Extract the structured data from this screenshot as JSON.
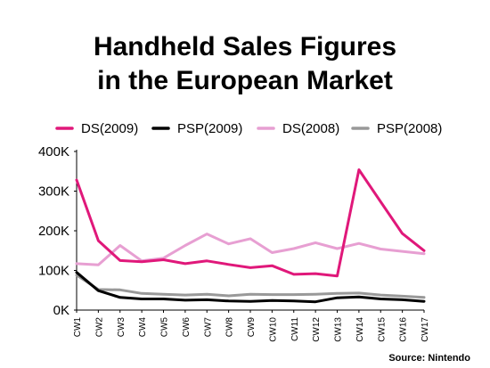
{
  "chart_data": {
    "type": "line",
    "title": [
      "Handheld Sales Figures",
      "in the European Market"
    ],
    "xlabel": "",
    "ylabel": "",
    "categories": [
      "CW1",
      "CW2",
      "CW3",
      "CW4",
      "CW5",
      "CW6",
      "CW7",
      "CW8",
      "CW9",
      "CW10",
      "CW11",
      "CW12",
      "CW13",
      "CW14",
      "CW15",
      "CW16",
      "CW17"
    ],
    "ylim": [
      0,
      400000
    ],
    "ytick_values": [
      0,
      100000,
      200000,
      300000,
      400000
    ],
    "ytick_labels": [
      "0K",
      "100K",
      "200K",
      "300K",
      "400K"
    ],
    "grid": false,
    "legend_position": "top",
    "source": "Source: Nintendo",
    "series": [
      {
        "name": "DS(2009)",
        "color": "#e0187a",
        "values": [
          328000,
          175000,
          125000,
          122000,
          127000,
          117000,
          124000,
          115000,
          107000,
          112000,
          90000,
          92000,
          86000,
          354000,
          273000,
          193000,
          150000
        ]
      },
      {
        "name": "PSP(2009)",
        "color": "#000000",
        "values": [
          95000,
          49000,
          32000,
          28000,
          28000,
          25000,
          26000,
          23000,
          22000,
          24000,
          23000,
          21000,
          31000,
          33000,
          28000,
          26000,
          22000
        ]
      },
      {
        "name": "DS(2008)",
        "color": "#e79fd2",
        "values": [
          117000,
          114000,
          163000,
          124000,
          131000,
          163000,
          192000,
          167000,
          180000,
          145000,
          155000,
          170000,
          155000,
          168000,
          154000,
          148000,
          142000
        ]
      },
      {
        "name": "PSP(2008)",
        "color": "#999999",
        "values": [
          88000,
          52000,
          51000,
          42000,
          40000,
          38000,
          40000,
          36000,
          40000,
          39000,
          39000,
          40000,
          42000,
          43000,
          38000,
          35000,
          32000
        ]
      }
    ]
  }
}
